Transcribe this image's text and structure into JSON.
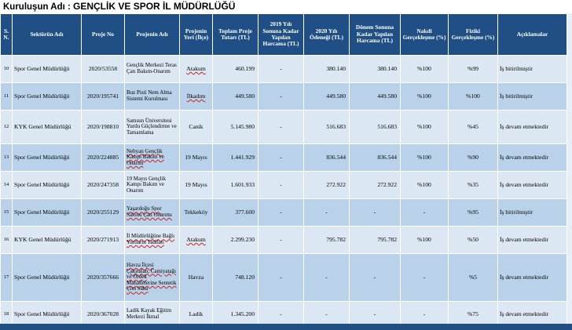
{
  "title": {
    "prefix": "Kuruluşun Adı : ",
    "name": "GENÇLİK VE  SPOR İL MÜDÜRLÜĞÜ"
  },
  "columns": [
    "S. N.",
    "Sektörün Adı",
    "Proje No",
    "Projenin Adı",
    "Projenin Yeri (İlçe)",
    "Toplam Proje Tutarı (TL)",
    "2019 Yılı Sonuna Kadar Yapılan Harcama (TL)",
    "2020 Yılı Ödeneği (TL)",
    "Dönem Sonuna Kadar Yapılan Harcama (TL)",
    "Nakdi Gerçekleşme (%)",
    "Fiziki Gerçekleşme (%)",
    "Açıklamalar"
  ],
  "rows": [
    {
      "sn": "10",
      "sektor": "Spor Genel Müdürlüğü",
      "proje_no": "2020/53558",
      "proje_adi": "Gençlik Merkezi Teras Çatı Bakım-Onarım",
      "ilce": "Atakum",
      "toplam": "460.199",
      "harcama_2019": "-",
      "odenek_2020": "380.140",
      "donem_harcama": "380.140",
      "nakdi": "%100",
      "fiziki": "%99",
      "aciklama": "İş bitirilmiştir"
    },
    {
      "sn": "11",
      "sektor": "Spor Genel Müdürlüğü",
      "proje_no": "2020/195741",
      "proje_adi": "Buz Pisti Nem Alma Sistemi Kurulması",
      "ilce": "İlkadım",
      "toplam": "449.580",
      "harcama_2019": "-",
      "odenek_2020": "449.580",
      "donem_harcama": "449.580",
      "nakdi": "%100",
      "fiziki": "%100",
      "aciklama": "İş bitirilmiştir"
    },
    {
      "sn": "12",
      "sektor": "KYK Genel Müdürlüğü",
      "proje_no": "2020/198810",
      "proje_adi": "Samsun Üniversitesi Yurdu Güçlendirme ve Tamamlama",
      "ilce": "Canik",
      "toplam": "5.145.980",
      "harcama_2019": "-",
      "odenek_2020": "516.683",
      "donem_harcama": "516.683",
      "nakdi": "%100",
      "fiziki": "%45",
      "aciklama": "İş devam etmektedir"
    },
    {
      "sn": "13",
      "sektor": "Spor Genel Müdürlüğü",
      "proje_no": "2020/224885",
      "proje_adi": "Nebyan Gençlik Kampı Bakım ve Onarım",
      "ilce": "19 Mayıs",
      "toplam": "1.441.929",
      "harcama_2019": "-",
      "odenek_2020": "836.544",
      "donem_harcama": "836.544",
      "nakdi": "%100",
      "fiziki": "%90",
      "aciklama": "İş devam etmektedir"
    },
    {
      "sn": "14",
      "sektor": "Spor Genel Müdürlüğü",
      "proje_no": "2020/247358",
      "proje_adi": "19 Mayıs Gençlik Kampı Bakım ve Onarım",
      "ilce": "19 Mayıs",
      "toplam": "1.601.933",
      "harcama_2019": "-",
      "odenek_2020": "272.922",
      "donem_harcama": "272.922",
      "nakdi": "%100",
      "fiziki": "%35",
      "aciklama": "İş devam etmektedir"
    },
    {
      "sn": "15",
      "sektor": "Spor Genel Müdürlüğü",
      "proje_no": "2020/255129",
      "proje_adi": "Yaşardoğu Spor Salonu Çatı Onarımı",
      "ilce": "Tekkeköy",
      "toplam": "377.600",
      "harcama_2019": "-",
      "odenek_2020": "-",
      "donem_harcama": "-",
      "nakdi": "-",
      "fiziki": "%95",
      "aciklama": "İş bitirilmiştir"
    },
    {
      "sn": "16",
      "sektor": "KYK Genel Müdürlüğü",
      "proje_no": "2020/271913",
      "proje_adi": "İl Müdürlüğüne Bağlı Yurtların Tadilatı",
      "ilce": "Atakum",
      "toplam": "2.299.230",
      "harcama_2019": "-",
      "odenek_2020": "795.782",
      "donem_harcama": "795.782",
      "nakdi": "%100",
      "fiziki": "%50",
      "aciklama": "İş devam etmektedir"
    },
    {
      "sn": "17",
      "sektor": "Spor Genel Müdürlüğü",
      "proje_no": "2020/357666",
      "proje_adi": "Havza İlçesi Çakıralan, Camiyatağı ve Ördek Mahallelerine Sentetik Çim Saha",
      "ilce": "Havza",
      "toplam": "748.120",
      "harcama_2019": "-",
      "odenek_2020": "-",
      "donem_harcama": "-",
      "nakdi": "-",
      "fiziki": "%5",
      "aciklama": "İş devam etmektedir"
    },
    {
      "sn": "18",
      "sektor": "Spor Genel Müdürlüğü",
      "proje_no": "2020/367028",
      "proje_adi": "Ladik Kayak Eğitim Merkezi İkmal",
      "ilce": "Ladik",
      "toplam": "1.345.200",
      "harcama_2019": "-",
      "odenek_2020": "-",
      "donem_harcama": "-",
      "nakdi": "-",
      "fiziki": "%75",
      "aciklama": "İş devam etmektedir"
    }
  ],
  "colors": {
    "header_bg": "#1f4f85",
    "row_odd": "#dbe7f3",
    "row_even": "#b9d2ea",
    "footer_bg": "#1f4f85"
  }
}
